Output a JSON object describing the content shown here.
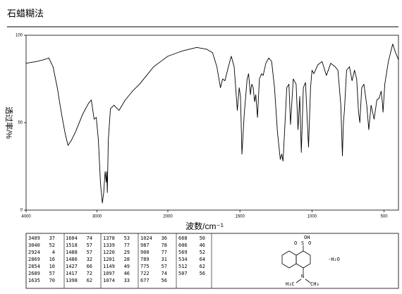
{
  "chart_data": {
    "type": "line",
    "title": "石蜡糊法",
    "xlabel": "波数/cm⁻¹",
    "ylabel": "透过率/%",
    "xlim": [
      4000,
      400
    ],
    "xbreak": 2000,
    "xticks": [
      4000,
      3000,
      2000,
      1500,
      1000,
      500
    ],
    "ylim": [
      0,
      100
    ],
    "yticks": [
      0,
      50,
      100
    ],
    "x": [
      4000,
      3850,
      3750,
      3680,
      3620,
      3560,
      3500,
      3450,
      3409,
      3360,
      3300,
      3200,
      3120,
      3080,
      3040,
      3010,
      2980,
      2950,
      2924,
      2905,
      2885,
      2869,
      2862,
      2854,
      2840,
      2810,
      2760,
      2689,
      2600,
      2500,
      2400,
      2300,
      2200,
      2100,
      2000,
      1900,
      1800,
      1730,
      1690,
      1660,
      1635,
      1620,
      1604,
      1580,
      1560,
      1540,
      1518,
      1505,
      1496,
      1486,
      1470,
      1450,
      1440,
      1427,
      1422,
      1417,
      1408,
      1398,
      1390,
      1378,
      1365,
      1350,
      1339,
      1320,
      1300,
      1280,
      1260,
      1240,
      1220,
      1210,
      1201,
      1190,
      1175,
      1160,
      1149,
      1130,
      1110,
      1097,
      1085,
      1074,
      1060,
      1045,
      1024,
      1010,
      1000,
      987,
      960,
      930,
      900,
      870,
      840,
      820,
      800,
      789,
      782,
      775,
      760,
      740,
      722,
      705,
      690,
      677,
      668,
      655,
      640,
      620,
      606,
      590,
      569,
      550,
      534,
      520,
      512,
      507,
      495,
      470,
      440,
      420,
      400
    ],
    "series": [
      {
        "name": "spectrum",
        "color": "#000000",
        "values": [
          84,
          85,
          86,
          87,
          82,
          70,
          55,
          44,
          37,
          40,
          45,
          55,
          61,
          63,
          52,
          53,
          40,
          15,
          4,
          10,
          22,
          16,
          22,
          10,
          40,
          58,
          60,
          57,
          63,
          68,
          72,
          77,
          82,
          85,
          88,
          91,
          93,
          92,
          90,
          82,
          70,
          75,
          74,
          82,
          88,
          82,
          57,
          70,
          65,
          32,
          55,
          75,
          78,
          66,
          70,
          72,
          70,
          62,
          66,
          53,
          75,
          78,
          77,
          84,
          87,
          85,
          70,
          45,
          29,
          32,
          28,
          45,
          70,
          72,
          49,
          75,
          72,
          46,
          65,
          33,
          70,
          73,
          36,
          70,
          80,
          78,
          83,
          85,
          77,
          84,
          82,
          80,
          60,
          31,
          50,
          57,
          80,
          82,
          74,
          80,
          75,
          56,
          50,
          70,
          72,
          60,
          46,
          60,
          52,
          63,
          64,
          68,
          62,
          56,
          72,
          85,
          95,
          90,
          86
        ]
      }
    ],
    "peak_table": [
      [
        [
          3409,
          37
        ],
        [
          3040,
          52
        ],
        [
          2924,
          4
        ],
        [
          2869,
          16
        ],
        [
          2854,
          10
        ],
        [
          2689,
          57
        ],
        [
          1635,
          70
        ]
      ],
      [
        [
          1604,
          74
        ],
        [
          1518,
          57
        ],
        [
          1488,
          57
        ],
        [
          1486,
          32
        ],
        [
          1427,
          66
        ],
        [
          1417,
          72
        ],
        [
          1398,
          62
        ]
      ],
      [
        [
          1378,
          53
        ],
        [
          1339,
          77
        ],
        [
          1220,
          29
        ],
        [
          1201,
          28
        ],
        [
          1149,
          49
        ],
        [
          1097,
          46
        ],
        [
          1074,
          33
        ]
      ],
      [
        [
          1024,
          36
        ],
        [
          987,
          78
        ],
        [
          900,
          77
        ],
        [
          789,
          31
        ],
        [
          775,
          57
        ],
        [
          722,
          74
        ],
        [
          677,
          56
        ]
      ],
      [
        [
          668,
          50
        ],
        [
          606,
          46
        ],
        [
          569,
          52
        ],
        [
          534,
          64
        ],
        [
          512,
          62
        ],
        [
          507,
          56
        ]
      ]
    ],
    "structure_labels": [
      "OH",
      "S",
      "O",
      "O",
      "N",
      "H₃C",
      "CH₃",
      "·H₂O"
    ]
  }
}
